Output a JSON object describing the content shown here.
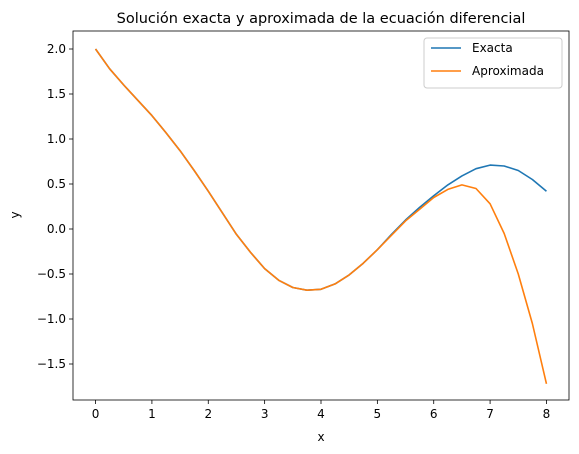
{
  "chart_data": {
    "type": "line",
    "title": "Solución exacta y aproximada de la ecuación diferencial",
    "xlabel": "x",
    "ylabel": "y",
    "xlim": [
      -0.4,
      8.4
    ],
    "ylim": [
      -1.9,
      2.2
    ],
    "xticks": [
      0,
      1,
      2,
      3,
      4,
      5,
      6,
      7,
      8
    ],
    "xtick_labels": [
      "0",
      "1",
      "2",
      "3",
      "4",
      "5",
      "6",
      "7",
      "8"
    ],
    "yticks": [
      -1.5,
      -1.0,
      -0.5,
      0.0,
      0.5,
      1.0,
      1.5,
      2.0
    ],
    "ytick_labels": [
      "−1.5",
      "−1.0",
      "−0.5",
      "0.0",
      "0.5",
      "1.0",
      "1.5",
      "2.0"
    ],
    "grid": false,
    "legend_position": "top-right",
    "series": [
      {
        "name": "Exacta",
        "color": "#1f77b4",
        "x": [
          0,
          0.25,
          0.5,
          0.75,
          1.0,
          1.25,
          1.5,
          1.75,
          2.0,
          2.25,
          2.5,
          2.75,
          3.0,
          3.25,
          3.5,
          3.75,
          4.0,
          4.25,
          4.5,
          4.75,
          5.0,
          5.25,
          5.5,
          5.75,
          6.0,
          6.25,
          6.5,
          6.75,
          7.0,
          7.25,
          7.5,
          7.75,
          8.0
        ],
        "y": [
          2.0,
          1.78,
          1.6,
          1.43,
          1.26,
          1.07,
          0.87,
          0.65,
          0.42,
          0.18,
          -0.06,
          -0.26,
          -0.44,
          -0.57,
          -0.65,
          -0.68,
          -0.67,
          -0.61,
          -0.51,
          -0.38,
          -0.23,
          -0.06,
          0.1,
          0.24,
          0.37,
          0.49,
          0.59,
          0.67,
          0.71,
          0.7,
          0.65,
          0.55,
          0.42
        ]
      },
      {
        "name": "Aproximada",
        "color": "#ff7f0e",
        "x": [
          0,
          0.25,
          0.5,
          0.75,
          1.0,
          1.25,
          1.5,
          1.75,
          2.0,
          2.25,
          2.5,
          2.75,
          3.0,
          3.25,
          3.5,
          3.75,
          4.0,
          4.25,
          4.5,
          4.75,
          5.0,
          5.25,
          5.5,
          5.75,
          6.0,
          6.25,
          6.5,
          6.75,
          7.0,
          7.25,
          7.5,
          7.75,
          8.0
        ],
        "y": [
          2.0,
          1.78,
          1.6,
          1.43,
          1.26,
          1.07,
          0.87,
          0.65,
          0.42,
          0.18,
          -0.06,
          -0.26,
          -0.44,
          -0.57,
          -0.65,
          -0.68,
          -0.67,
          -0.61,
          -0.51,
          -0.38,
          -0.23,
          -0.07,
          0.09,
          0.22,
          0.35,
          0.44,
          0.49,
          0.45,
          0.28,
          -0.05,
          -0.5,
          -1.05,
          -1.72
        ]
      }
    ]
  }
}
